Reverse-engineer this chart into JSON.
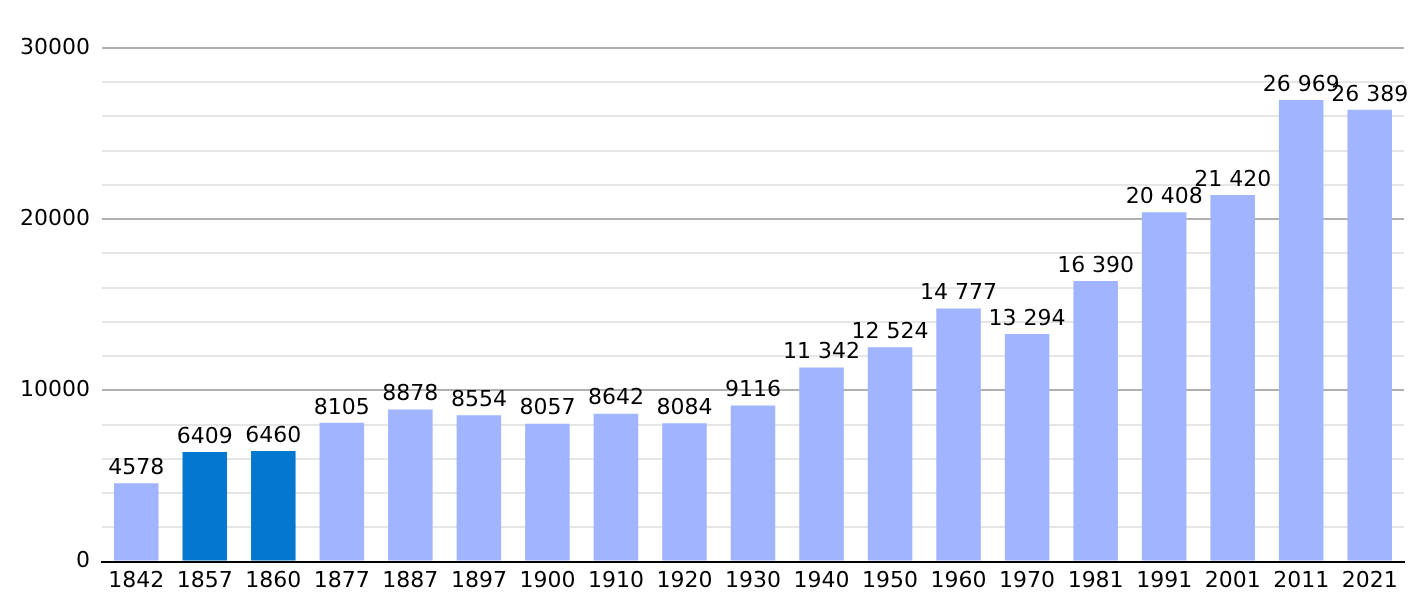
{
  "chart_data": {
    "type": "bar",
    "categories": [
      "1842",
      "1857",
      "1860",
      "1877",
      "1887",
      "1897",
      "1900",
      "1910",
      "1920",
      "1930",
      "1940",
      "1950",
      "1960",
      "1970",
      "1981",
      "1991",
      "2001",
      "2011",
      "2021"
    ],
    "values": [
      4578,
      6409,
      6460,
      8105,
      8878,
      8554,
      8057,
      8642,
      8084,
      9116,
      11342,
      12524,
      14777,
      13294,
      16390,
      20408,
      21420,
      26969,
      26389
    ],
    "value_labels": [
      "4578",
      "6409",
      "6460",
      "8105",
      "8878",
      "8554",
      "8057",
      "8642",
      "8084",
      "9116",
      "11 342",
      "12 524",
      "14 777",
      "13 294",
      "16 390",
      "20 408",
      "21 420",
      "26 969",
      "26 389"
    ],
    "colors": [
      "#a0b4ff",
      "#0478d0",
      "#0478d0",
      "#a0b4ff",
      "#a0b4ff",
      "#a0b4ff",
      "#a0b4ff",
      "#a0b4ff",
      "#a0b4ff",
      "#a0b4ff",
      "#a0b4ff",
      "#a0b4ff",
      "#a0b4ff",
      "#a0b4ff",
      "#a0b4ff",
      "#a0b4ff",
      "#a0b4ff",
      "#a0b4ff",
      "#a0b4ff"
    ],
    "ylim": [
      0,
      30000
    ],
    "yticks": [
      0,
      {
        "value": 2000,
        "label": null
      },
      {
        "value": 4000,
        "label": null
      },
      {
        "value": 6000,
        "label": null
      },
      {
        "value": 8000,
        "label": null
      },
      10000,
      {
        "value": 12000,
        "label": null
      },
      {
        "value": 14000,
        "label": null
      },
      {
        "value": 16000,
        "label": null
      },
      {
        "value": 18000,
        "label": null
      },
      20000,
      {
        "value": 22000,
        "label": null
      },
      {
        "value": 24000,
        "label": null
      },
      {
        "value": 26000,
        "label": null
      },
      {
        "value": 28000,
        "label": null
      },
      30000
    ],
    "grid": "y"
  }
}
